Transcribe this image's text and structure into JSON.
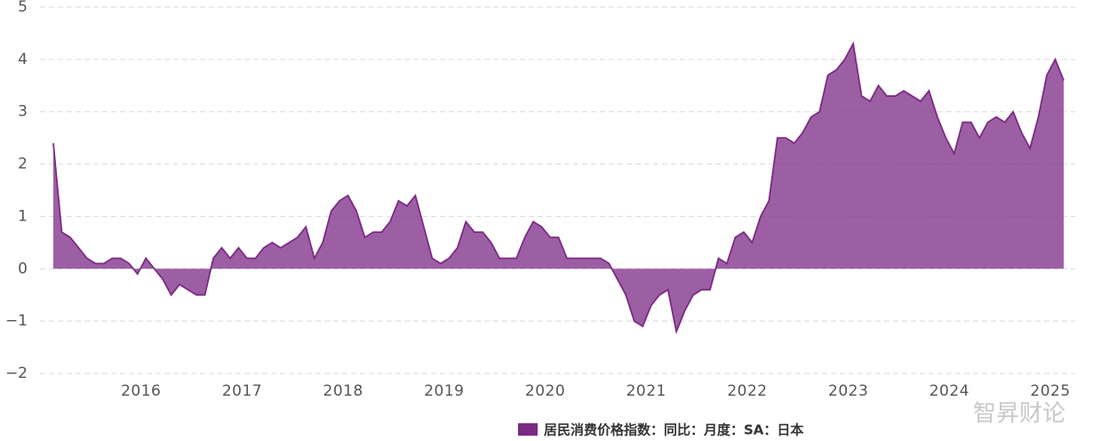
{
  "chart_data": {
    "type": "area",
    "categories": [
      null,
      null,
      null,
      null,
      null,
      null,
      null,
      null,
      null,
      null,
      "2016",
      null,
      null,
      null,
      null,
      null,
      null,
      null,
      null,
      null,
      null,
      null,
      "2017",
      null,
      null,
      null,
      null,
      null,
      null,
      null,
      null,
      null,
      null,
      null,
      "2018",
      null,
      null,
      null,
      null,
      null,
      null,
      null,
      null,
      null,
      null,
      null,
      "2019",
      null,
      null,
      null,
      null,
      null,
      null,
      null,
      null,
      null,
      null,
      null,
      "2020",
      null,
      null,
      null,
      null,
      null,
      null,
      null,
      null,
      null,
      null,
      null,
      "2021",
      null,
      null,
      null,
      null,
      null,
      null,
      null,
      null,
      null,
      null,
      null,
      "2022",
      null,
      null,
      null,
      null,
      null,
      null,
      null,
      null,
      null,
      null,
      null,
      "2023",
      null,
      null,
      null,
      null,
      null,
      null,
      null,
      null,
      null,
      null,
      null,
      "2024",
      null,
      null,
      null,
      null,
      null,
      null,
      null,
      null,
      null,
      null,
      null,
      "2025",
      null,
      null
    ],
    "series": [
      {
        "name": "居民消费价格指数：同比：月度：SA：日本",
        "color": "#7b2a84",
        "values": [
          2.4,
          0.7,
          0.6,
          0.4,
          0.2,
          0.1,
          0.1,
          0.2,
          0.2,
          0.1,
          -0.1,
          0.2,
          0.0,
          -0.2,
          -0.5,
          -0.3,
          -0.4,
          -0.5,
          -0.5,
          0.2,
          0.4,
          0.2,
          0.4,
          0.2,
          0.2,
          0.4,
          0.5,
          0.4,
          0.5,
          0.6,
          0.8,
          0.2,
          0.5,
          1.1,
          1.3,
          1.4,
          1.1,
          0.6,
          0.7,
          0.7,
          0.9,
          1.3,
          1.2,
          1.4,
          0.8,
          0.2,
          0.1,
          0.2,
          0.4,
          0.9,
          0.7,
          0.7,
          0.5,
          0.2,
          0.2,
          0.2,
          0.6,
          0.9,
          0.8,
          0.6,
          0.6,
          0.2,
          0.2,
          0.2,
          0.2,
          0.2,
          0.1,
          -0.2,
          -0.5,
          -1.0,
          -1.1,
          -0.7,
          -0.5,
          -0.4,
          -1.2,
          -0.8,
          -0.5,
          -0.4,
          -0.4,
          0.2,
          0.1,
          0.6,
          0.7,
          0.5,
          1.0,
          1.3,
          2.5,
          2.5,
          2.4,
          2.6,
          2.9,
          3.0,
          3.7,
          3.8,
          4.0,
          4.3,
          3.3,
          3.2,
          3.5,
          3.3,
          3.3,
          3.4,
          3.3,
          3.2,
          3.4,
          2.9,
          2.5,
          2.2,
          2.8,
          2.8,
          2.5,
          2.8,
          2.9,
          2.8,
          3.0,
          2.6,
          2.3,
          2.9,
          3.7,
          4.0,
          3.6
        ]
      }
    ],
    "ylim": [
      -2,
      5
    ],
    "yticks": [
      {
        "value": -2,
        "label": "−2"
      },
      {
        "value": -1,
        "label": "−1"
      },
      0,
      1,
      2,
      3,
      4,
      5
    ],
    "grid": true,
    "watermark": "智昇财论"
  }
}
